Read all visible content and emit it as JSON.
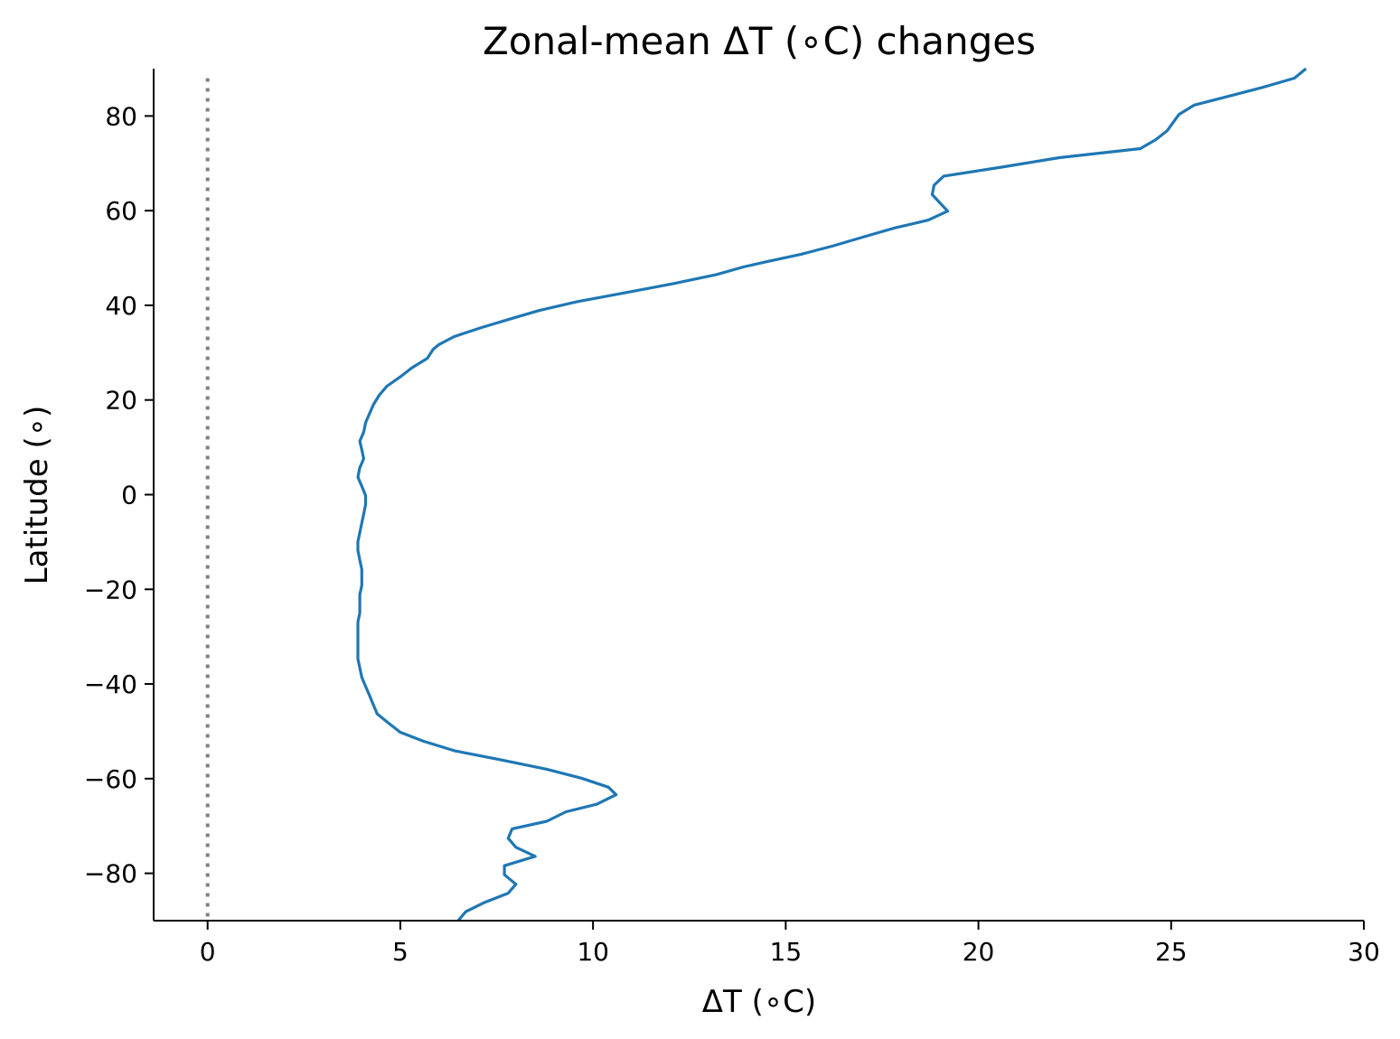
{
  "chart_data": {
    "type": "line",
    "title": "Zonal-mean ΔT (∘C) changes",
    "xlabel": "ΔT (∘C)",
    "ylabel": "Latitude (∘)",
    "xlim": [
      -1.4,
      30
    ],
    "ylim": [
      -90,
      90
    ],
    "xticks": [
      0,
      5,
      10,
      15,
      20,
      25,
      30
    ],
    "xtick_labels": [
      "0",
      "5",
      "10",
      "15",
      "20",
      "25",
      "30"
    ],
    "yticks": [
      -80,
      -60,
      -40,
      -20,
      0,
      20,
      40,
      60,
      80
    ],
    "ytick_labels": [
      "−80",
      "−60",
      "−40",
      "−20",
      "0",
      "20",
      "40",
      "60",
      "80"
    ],
    "grid": false,
    "reference_line": {
      "x": 0,
      "style": "dotted",
      "color": "#808080"
    },
    "series": [
      {
        "color": "#1f77b4",
        "points": [
          [
            6.5,
            -90
          ],
          [
            6.7,
            -88.1
          ],
          [
            7.2,
            -86.1
          ],
          [
            7.8,
            -84.2
          ],
          [
            8.0,
            -82.3
          ],
          [
            7.7,
            -80.3
          ],
          [
            7.7,
            -78.4
          ],
          [
            8.5,
            -76.4
          ],
          [
            8.0,
            -74.5
          ],
          [
            7.8,
            -72.6
          ],
          [
            7.9,
            -70.6
          ],
          [
            8.8,
            -69.0
          ],
          [
            9.3,
            -67.0
          ],
          [
            10.1,
            -65.4
          ],
          [
            10.6,
            -63.4
          ],
          [
            10.4,
            -61.8
          ],
          [
            9.7,
            -59.9
          ],
          [
            8.8,
            -58.0
          ],
          [
            7.6,
            -56.0
          ],
          [
            6.4,
            -54.1
          ],
          [
            5.6,
            -52.1
          ],
          [
            5.0,
            -50.2
          ],
          [
            4.7,
            -48.3
          ],
          [
            4.4,
            -46.3
          ],
          [
            4.3,
            -44.4
          ],
          [
            4.2,
            -42.4
          ],
          [
            4.1,
            -40.5
          ],
          [
            4.0,
            -38.6
          ],
          [
            3.95,
            -36.6
          ],
          [
            3.9,
            -34.7
          ],
          [
            3.9,
            -32.7
          ],
          [
            3.9,
            -30.8
          ],
          [
            3.9,
            -28.9
          ],
          [
            3.9,
            -26.9
          ],
          [
            3.95,
            -25.0
          ],
          [
            3.95,
            -23.0
          ],
          [
            3.95,
            -21.1
          ],
          [
            4.0,
            -19.2
          ],
          [
            4.0,
            -17.2
          ],
          [
            4.0,
            -15.8
          ],
          [
            3.95,
            -13.8
          ],
          [
            3.9,
            -11.8
          ],
          [
            3.9,
            -9.9
          ],
          [
            3.95,
            -8.0
          ],
          [
            4.0,
            -6.0
          ],
          [
            4.05,
            -4.1
          ],
          [
            4.1,
            -2.1
          ],
          [
            4.1,
            -0.2
          ],
          [
            4.0,
            1.8
          ],
          [
            3.9,
            3.7
          ],
          [
            3.95,
            5.7
          ],
          [
            4.05,
            7.6
          ],
          [
            4.0,
            9.5
          ],
          [
            3.95,
            11.3
          ],
          [
            4.05,
            13.2
          ],
          [
            4.1,
            15.2
          ],
          [
            4.2,
            17.1
          ],
          [
            4.3,
            19.0
          ],
          [
            4.45,
            21.0
          ],
          [
            4.65,
            22.9
          ],
          [
            5.0,
            24.9
          ],
          [
            5.3,
            26.8
          ],
          [
            5.7,
            28.8
          ],
          [
            5.85,
            30.7
          ],
          [
            6.0,
            31.7
          ],
          [
            6.4,
            33.4
          ],
          [
            7.1,
            35.3
          ],
          [
            7.8,
            37.0
          ],
          [
            8.6,
            38.9
          ],
          [
            9.6,
            40.8
          ],
          [
            10.8,
            42.6
          ],
          [
            12.1,
            44.6
          ],
          [
            13.2,
            46.5
          ],
          [
            13.9,
            48.1
          ],
          [
            14.5,
            49.2
          ],
          [
            15.4,
            50.8
          ],
          [
            16.2,
            52.5
          ],
          [
            17.0,
            54.4
          ],
          [
            17.8,
            56.3
          ],
          [
            18.7,
            58.0
          ],
          [
            19.2,
            59.9
          ],
          [
            18.8,
            63.4
          ],
          [
            18.85,
            65.4
          ],
          [
            19.1,
            67.3
          ],
          [
            20.6,
            69.2
          ],
          [
            22.1,
            71.2
          ],
          [
            24.2,
            73.1
          ],
          [
            24.6,
            75.0
          ],
          [
            24.9,
            76.9
          ],
          [
            25.2,
            80.3
          ],
          [
            25.6,
            82.3
          ],
          [
            26.5,
            84.2
          ],
          [
            27.4,
            86.1
          ],
          [
            28.2,
            88.0
          ],
          [
            28.5,
            90
          ]
        ]
      }
    ]
  }
}
